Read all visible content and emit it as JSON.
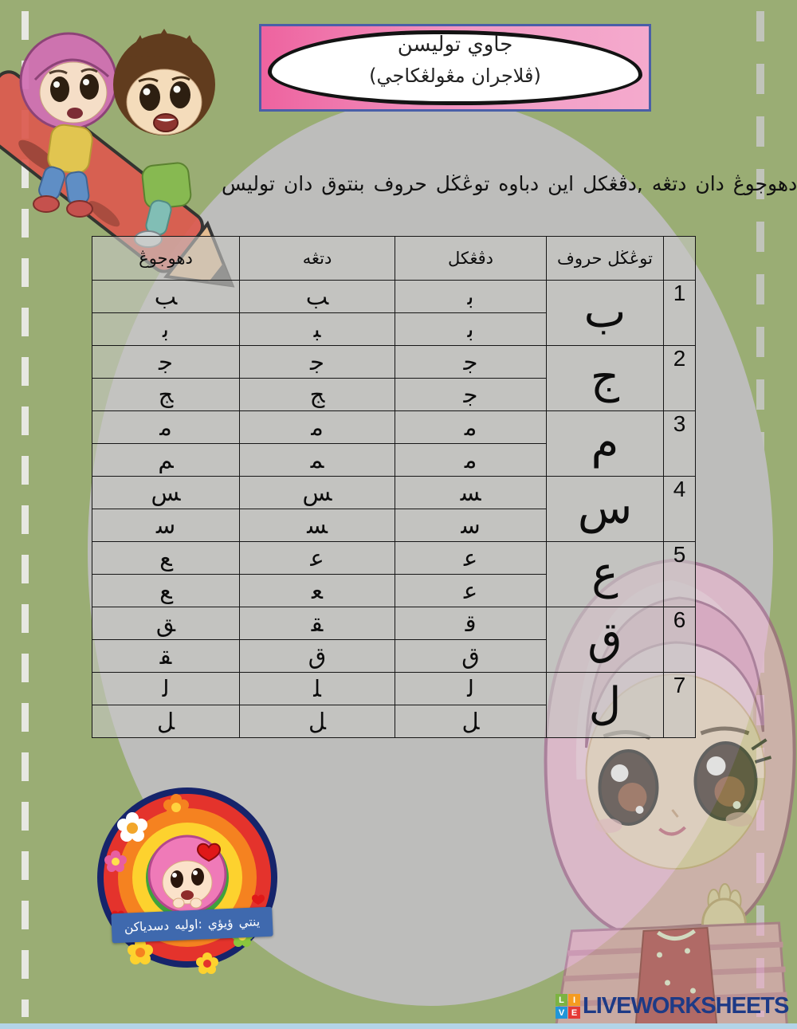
{
  "page": {
    "background_color": "#9aad74",
    "ellipse_color": "#bdbdbb",
    "bottom_strip_color": "#b3d4e7"
  },
  "banner": {
    "title": "توليسن جاوي",
    "subtitle": "(مڠولڠكاجي ڤلاجران)",
    "bg_color": "#ee639f",
    "border_color": "#4a5fa8"
  },
  "instruction": "توليس دان بنتوق حروف توڠڬل دباوه اين دڤڠكل, دتڠه دان دهوجوڠ :",
  "table": {
    "headers": {
      "hujung": "دهوجوڠ",
      "tengah": "دتڠه",
      "pangkal": "دڤڠكل",
      "huruf": "حروف توڠڬل",
      "num": ""
    },
    "rows": [
      {
        "num": "1",
        "letter": "ب",
        "forms": [
          {
            "pangkal": "ﺑ",
            "tengah": "ﺐ",
            "hujung": "ﺐ"
          },
          {
            "pangkal": "ﺑ",
            "tengah": "ﺒ",
            "hujung": "ﺑ"
          }
        ]
      },
      {
        "num": "2",
        "letter": "ج",
        "forms": [
          {
            "pangkal": "ﺟ",
            "tengah": "ﺟ",
            "hujung": "ﺟ"
          },
          {
            "pangkal": "ﺟ",
            "tengah": "ﺞ",
            "hujung": "ﺞ"
          }
        ]
      },
      {
        "num": "3",
        "letter": "م",
        "forms": [
          {
            "pangkal": "ﻣ",
            "tengah": "ﻣ",
            "hujung": "ﻣ"
          },
          {
            "pangkal": "ﻣ",
            "tengah": "ﻤ",
            "hujung": "ﻢ"
          }
        ]
      },
      {
        "num": "4",
        "letter": "س",
        "forms": [
          {
            "pangkal": "ﺴ",
            "tengah": "ﺲ",
            "hujung": "ﺲ"
          },
          {
            "pangkal": "ﺳ",
            "tengah": "ﺴ",
            "hujung": "ﺳ"
          }
        ]
      },
      {
        "num": "5",
        "letter": "ع",
        "forms": [
          {
            "pangkal": "ﻋ",
            "tengah": "ﻋ",
            "hujung": "ﻊ"
          },
          {
            "pangkal": "ﻋ",
            "tengah": "ﻌ",
            "hujung": "ﻊ"
          }
        ]
      },
      {
        "num": "6",
        "letter": "ق",
        "forms": [
          {
            "pangkal": "ﻗ",
            "tengah": "ﻘ",
            "hujung": "ﻖ"
          },
          {
            "pangkal": "ق",
            "tengah": "ق",
            "hujung": "ﻘ"
          }
        ]
      },
      {
        "num": "7",
        "letter": "ل",
        "forms": [
          {
            "pangkal": "ﻟ",
            "tengah": "ﻠ",
            "hujung": "ﻟ"
          },
          {
            "pangkal": "ﻞ",
            "tengah": "ﻞ",
            "hujung": "ﻞ"
          }
        ]
      }
    ]
  },
  "credit": {
    "text": "دسدياكن اوليه: ؤيؤي ينتي",
    "band_color": "#3f69ae"
  },
  "footer": {
    "brand": "LIVEWORKSHEETS",
    "brand_color": "#1d3a86",
    "squares": [
      {
        "label": "L",
        "color": "#7cb342"
      },
      {
        "label": "I",
        "color": "#f59b20"
      },
      {
        "label": "V",
        "color": "#2196d9"
      },
      {
        "label": "E",
        "color": "#e53935"
      }
    ]
  }
}
